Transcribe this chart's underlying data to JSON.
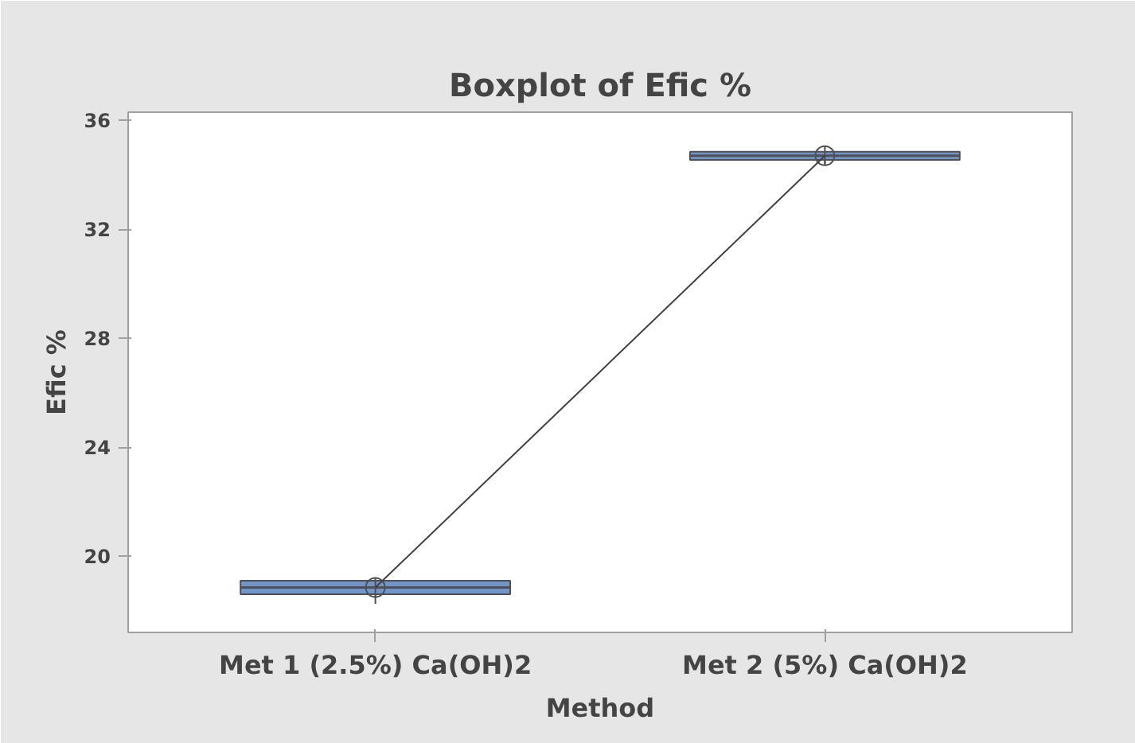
{
  "chart_data": {
    "type": "box",
    "title": "Boxplot of Efic %",
    "xlabel": "Method",
    "ylabel": "Efic %",
    "categories": [
      "Met 1 (2.5%) Ca(OH)2",
      "Met 2 (5%) Ca(OH)2"
    ],
    "boxes": [
      {
        "low": 18.25,
        "q1": 18.6,
        "median": 18.85,
        "q3": 19.1,
        "high": 19.1,
        "mean": 18.85
      },
      {
        "low": 34.4,
        "q1": 34.55,
        "median": 34.7,
        "q3": 34.85,
        "high": 34.85,
        "mean": 34.7
      }
    ],
    "color": "#7094cc",
    "series": [
      {
        "type": "line",
        "values": [
          18.85,
          34.7
        ],
        "color": "#404040"
      }
    ],
    "ylim": [
      17.2,
      36.3
    ],
    "yticks": [
      20,
      24,
      28,
      32,
      36
    ],
    "grid": false
  }
}
